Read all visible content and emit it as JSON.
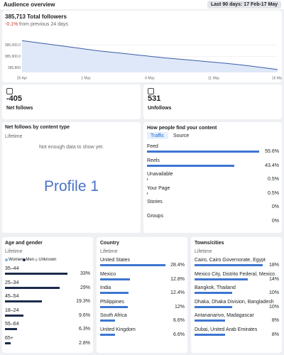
{
  "header": {
    "title": "Audience overview",
    "date_range": "Last 90 days: 17 Feb-17 May"
  },
  "followers": {
    "total": "385,713 Total followers",
    "change": "-0.1%",
    "change_note": "from previous 24 days",
    "chart": {
      "type": "line",
      "color": "#3b5ba9",
      "categories": [
        "26 Apr",
        null,
        null,
        null,
        null,
        "1 May",
        null,
        null,
        null,
        null,
        "6 May",
        null,
        null,
        null,
        null,
        "11 May",
        null,
        null,
        null,
        null,
        "16 May"
      ],
      "values": [
        386040,
        386025,
        386010,
        385995,
        385980,
        385965,
        385950,
        385938,
        385926,
        385914,
        385902,
        385890,
        385880,
        385870,
        385860,
        385850,
        385840,
        385828,
        385815,
        385800,
        385785
      ],
      "ylim": [
        385760,
        386060
      ],
      "yticks": [
        {
          "value": 385800,
          "label": "385,800"
        },
        {
          "value": 385900,
          "label": "385,900.0"
        },
        {
          "value": 386000,
          "label": "386,000.0"
        }
      ],
      "grid": true
    }
  },
  "net_follows": {
    "value": "-405",
    "label": "Net follows"
  },
  "unfollows": {
    "value": "531",
    "label": "Unfollows"
  },
  "content_type": {
    "title": "Net follows by content type",
    "subtitle": "Lifetime",
    "empty": "Not enough data to show yet.",
    "watermark": "Profile 1"
  },
  "find": {
    "title": "How people find your content",
    "tabs": [
      "Traffic",
      "Source"
    ],
    "labels": [
      "Feed",
      "Reels",
      "Unavailable",
      "Your Page",
      "Stories",
      "Groups"
    ],
    "values": [
      55.6,
      43.4,
      0.5,
      0.5,
      0,
      0
    ],
    "value_labels": [
      "55.6%",
      "43.4%",
      "0.5%",
      "0.5%",
      "0%",
      "0%"
    ]
  },
  "age": {
    "title": "Age and gender",
    "subtitle": "Lifetime",
    "legend": [
      "Women",
      "Men",
      "Unknown"
    ],
    "labels": [
      "35–44",
      "25–34",
      "45–54",
      "18–24",
      "55–64",
      "65+"
    ],
    "values": [
      33,
      29,
      19.3,
      9.6,
      6.3,
      2.8
    ],
    "value_labels": [
      "33%",
      "29%",
      "19.3%",
      "9.6%",
      "6.3%",
      "2.8%"
    ]
  },
  "country": {
    "title": "Country",
    "subtitle": "Lifetime",
    "labels": [
      "United States",
      "Mexico",
      "India",
      "Philippines",
      "South Africa",
      "United Kingdom"
    ],
    "values": [
      28.4,
      12.8,
      12.4,
      12,
      6.6,
      6.6
    ],
    "value_labels": [
      "28.4%",
      "12.8%",
      "12.4%",
      "12%",
      "6.6%",
      "6.6%"
    ]
  },
  "towns": {
    "title": "Towns/cities",
    "subtitle": "Lifetime",
    "labels": [
      "Cairo, Cairo Governorate, Egypt",
      "Mexico City, Distrito Federal, Mexico",
      "Bangkok, Thailand",
      "Dhaka, Dhaka Division, Bangladesh",
      "Antananarivo, Madagascar",
      "Dubai, United Arab Emirates"
    ],
    "values": [
      18,
      14,
      10,
      10,
      8,
      8
    ],
    "value_labels": [
      "18%",
      "14%",
      "10%",
      "10%",
      "8%",
      "8%"
    ]
  }
}
